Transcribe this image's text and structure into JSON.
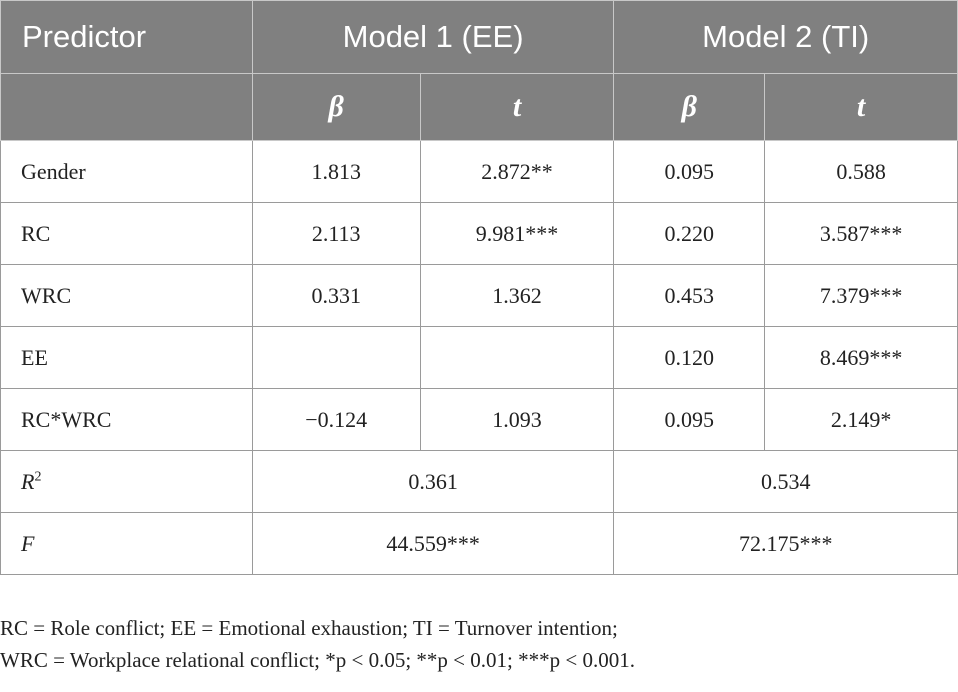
{
  "header": {
    "predictor": "Predictor",
    "model1": "Model 1 (EE)",
    "model2": "Model 2 (TI)",
    "beta": "β",
    "t": "t"
  },
  "rows": [
    {
      "label": "Gender",
      "m1_beta": "1.813",
      "m1_t": "2.872**",
      "m2_beta": "0.095",
      "m2_t": "0.588"
    },
    {
      "label": "RC",
      "m1_beta": "2.113",
      "m1_t": "9.981***",
      "m2_beta": "0.220",
      "m2_t": "3.587***"
    },
    {
      "label": "WRC",
      "m1_beta": "0.331",
      "m1_t": "1.362",
      "m2_beta": "0.453",
      "m2_t": "7.379***"
    },
    {
      "label": "EE",
      "m1_beta": "",
      "m1_t": "",
      "m2_beta": "0.120",
      "m2_t": "8.469***"
    },
    {
      "label": "RC*WRC",
      "m1_beta": "−0.124",
      "m1_t": "1.093",
      "m2_beta": "0.095",
      "m2_t": "2.149*"
    }
  ],
  "r2": {
    "label_base": "R",
    "label_sup": "2",
    "model1": "0.361",
    "model2": "0.534"
  },
  "f": {
    "label": "F",
    "model1": "44.559***",
    "model2": "72.175***"
  },
  "notes": {
    "line1": "RC = Role conflict; EE = Emotional exhaustion; TI = Turnover intention;",
    "line2": "WRC = Workplace relational conflict; *p < 0.05; **p < 0.01; ***p < 0.001."
  }
}
